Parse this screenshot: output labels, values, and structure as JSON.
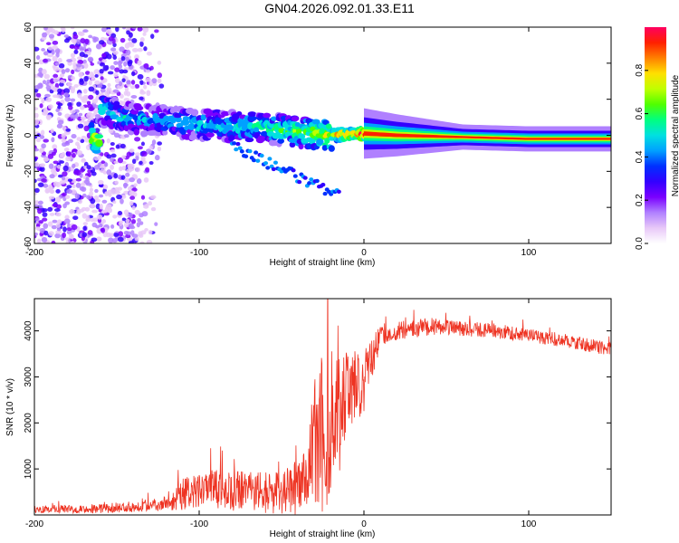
{
  "title": "GN04.2026.092.01.33.E11",
  "colors": {
    "snr_line": "#ee3322",
    "spectrogram_background": "#ffffff",
    "colormap": [
      "#ffffff",
      "#e8c8f8",
      "#b080ff",
      "#7a00ff",
      "#3300ff",
      "#0030ff",
      "#00a0ff",
      "#00e0e0",
      "#00ff80",
      "#50ff00",
      "#c0ff00",
      "#ffe000",
      "#ff8000",
      "#ff2000",
      "#ff0060"
    ]
  },
  "chart_data": [
    {
      "type": "heatmap",
      "title": "",
      "xlabel": "Height of straight line (km)",
      "ylabel": "Frequency (Hz)",
      "xlim": [
        -200,
        150
      ],
      "ylim": [
        -60,
        60
      ],
      "xticks": [
        -200,
        -100,
        0,
        100
      ],
      "yticks": [
        -60,
        -40,
        -20,
        0,
        20,
        40,
        60
      ],
      "colorbar": {
        "label": "Normalized spectral amplitude",
        "range": [
          0,
          1
        ],
        "ticks": [
          "0.0",
          "0.2",
          "0.4",
          "0.6",
          "0.8"
        ],
        "tick_values": [
          0,
          0.2,
          0.4,
          0.6,
          0.8
        ]
      },
      "features": {
        "noise_region_x": [
          -200,
          -120
        ],
        "signal_ridge": [
          {
            "x": -160,
            "f": 14,
            "amp": 0.55
          },
          {
            "x": -140,
            "f": 9,
            "amp": 0.45
          },
          {
            "x": -120,
            "f": 8,
            "amp": 0.45
          },
          {
            "x": -100,
            "f": 6,
            "amp": 0.5
          },
          {
            "x": -80,
            "f": 5,
            "amp": 0.5
          },
          {
            "x": -60,
            "f": 4,
            "amp": 0.55
          },
          {
            "x": -40,
            "f": 2,
            "amp": 0.6
          },
          {
            "x": -20,
            "f": 0,
            "amp": 0.75
          },
          {
            "x": 0,
            "f": 1,
            "amp": 0.9
          },
          {
            "x": 20,
            "f": 0,
            "amp": 0.85
          },
          {
            "x": 60,
            "f": -1,
            "amp": 0.7
          },
          {
            "x": 100,
            "f": -2,
            "amp": 0.7
          },
          {
            "x": 150,
            "f": -2,
            "amp": 0.7
          }
        ]
      }
    },
    {
      "type": "line",
      "title": "",
      "xlabel": "Height of straight line (km)",
      "ylabel": "SNR (10 * v/v)",
      "xlim": [
        -200,
        150
      ],
      "ylim": [
        0,
        4700
      ],
      "xticks": [
        -200,
        -100,
        0,
        100
      ],
      "yticks": [
        1000,
        2000,
        3000,
        4000
      ],
      "series": [
        {
          "name": "SNR",
          "envelope": {
            "x": [
              -200,
              -160,
              -140,
              -120,
              -110,
              -90,
              -70,
              -50,
              -40,
              -35,
              -30,
              -25,
              -20,
              -15,
              -10,
              -5,
              0,
              10,
              20,
              30,
              40,
              50,
              60,
              80,
              100,
              120,
              150
            ],
            "center": [
              120,
              140,
              180,
              250,
              450,
              550,
              500,
              480,
              600,
              900,
              1600,
              1800,
              2000,
              2300,
              2700,
              2800,
              2900,
              3900,
              4000,
              4050,
              4100,
              4080,
              4050,
              4000,
              3900,
              3800,
              3600
            ],
            "spread": [
              80,
              100,
              120,
              150,
              350,
              450,
              450,
              450,
              600,
              800,
              1500,
              1800,
              1700,
              1400,
              900,
              800,
              700,
              250,
              200,
              200,
              200,
              180,
              170,
              160,
              150,
              150,
              150
            ]
          }
        }
      ]
    }
  ]
}
